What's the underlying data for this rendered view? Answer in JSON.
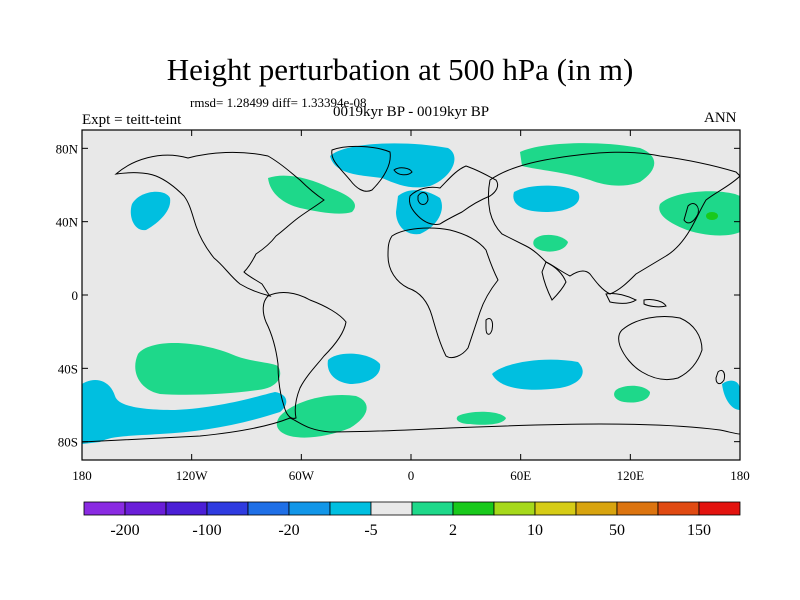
{
  "title": "Height perturbation at 500 hPa (in m)",
  "stats_line": "rmsd= 1.28499 diff= 1.33394e-08",
  "period_line": "0019kyr BP - 0019kyr BP",
  "expt_line": "Expt = teitt-teint",
  "season": "ANN",
  "map_colors": {
    "background": "#e8e8e8",
    "coast": "#000000"
  },
  "lon_ticks": [
    "180",
    "120W",
    "60W",
    "0",
    "60E",
    "120E",
    "180"
  ],
  "lat_ticks": [
    "80N",
    "40N",
    "0",
    "40S",
    "80S"
  ],
  "colorbar": {
    "colors": [
      "#8a2be2",
      "#6a1ed8",
      "#4b1fd6",
      "#2f3be0",
      "#1f6fe6",
      "#1296e8",
      "#00bfe0",
      "#e9e9e9",
      "#1ed88a",
      "#19c91c",
      "#a6d91b",
      "#d6cc16",
      "#d8a40f",
      "#dc7410",
      "#e04a12",
      "#e3130f"
    ],
    "labels": [
      "-200",
      "-100",
      "-20",
      "-5",
      "2",
      "10",
      "50",
      "150"
    ]
  },
  "regions": [
    {
      "id": "arctic-greenland-negative",
      "color": "#00bfe0"
    },
    {
      "id": "north-atlantic-negative",
      "color": "#00bfe0"
    },
    {
      "id": "north-pacific-negative",
      "color": "#00bfe0"
    },
    {
      "id": "central-asia-negative",
      "color": "#00bfe0"
    },
    {
      "id": "south-indian-negative",
      "color": "#00bfe0"
    },
    {
      "id": "south-atlantic-negative",
      "color": "#00bfe0"
    },
    {
      "id": "south-pacific-negative",
      "color": "#00bfe0"
    },
    {
      "id": "east-pacific-south-negative",
      "color": "#00bfe0"
    },
    {
      "id": "canada-positive",
      "color": "#1ed88a"
    },
    {
      "id": "siberia-positive",
      "color": "#1ed88a"
    },
    {
      "id": "northwest-pacific-positive",
      "color": "#1ed88a"
    },
    {
      "id": "middle-east-positive",
      "color": "#1ed88a"
    },
    {
      "id": "south-pacific-positive",
      "color": "#1ed88a"
    },
    {
      "id": "south-atlantic-positive",
      "color": "#1ed88a"
    },
    {
      "id": "australia-south-positive",
      "color": "#1ed88a"
    },
    {
      "id": "indian-ocean-south-positive",
      "color": "#1ed88a"
    }
  ]
}
